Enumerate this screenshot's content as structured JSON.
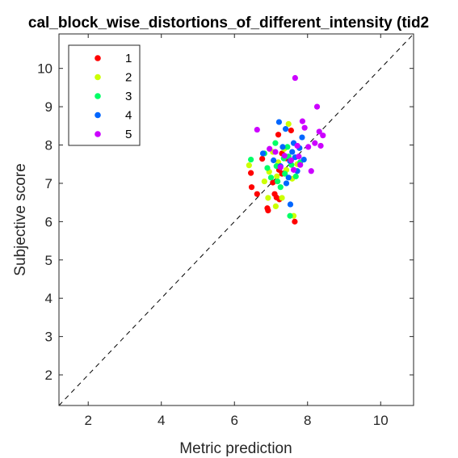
{
  "chart_data": {
    "type": "scatter",
    "title": "cal_block_wise_distortions_of_different_intensity (tid2",
    "xlabel": "Metric prediction",
    "ylabel": "Subjective score",
    "xlim": [
      1.2,
      10.9
    ],
    "ylim": [
      1.2,
      10.9
    ],
    "xticks": [
      2,
      4,
      6,
      8,
      10
    ],
    "yticks": [
      2,
      3,
      4,
      5,
      6,
      7,
      8,
      9,
      10
    ],
    "grid": false,
    "legend_position": "top-left",
    "reference_line": "diagonal dashed y = x",
    "series": [
      {
        "name": "1",
        "color": "#ff0000",
        "points": [
          [
            6.45,
            7.27
          ],
          [
            6.47,
            6.9
          ],
          [
            6.62,
            6.72
          ],
          [
            6.76,
            7.64
          ],
          [
            6.9,
            6.35
          ],
          [
            6.92,
            6.29
          ],
          [
            7.1,
            6.72
          ],
          [
            7.15,
            6.63
          ],
          [
            7.23,
            6.58
          ],
          [
            7.05,
            7.02
          ],
          [
            7.22,
            7.35
          ],
          [
            7.3,
            7.78
          ],
          [
            7.2,
            8.27
          ],
          [
            7.55,
            8.38
          ],
          [
            7.3,
            7.25
          ],
          [
            7.65,
            6.0
          ],
          [
            7.42,
            7.65
          ]
        ]
      },
      {
        "name": "2",
        "color": "#ccff00",
        "points": [
          [
            6.4,
            7.47
          ],
          [
            6.82,
            7.05
          ],
          [
            6.92,
            6.62
          ],
          [
            7.13,
            6.4
          ],
          [
            7.3,
            6.62
          ],
          [
            7.48,
            8.55
          ],
          [
            7.36,
            7.9
          ],
          [
            7.58,
            7.12
          ],
          [
            7.62,
            6.15
          ],
          [
            7.2,
            7.55
          ],
          [
            7.05,
            7.82
          ],
          [
            7.42,
            7.35
          ],
          [
            7.72,
            7.5
          ],
          [
            7.16,
            7.18
          ],
          [
            6.95,
            7.3
          ]
        ]
      },
      {
        "name": "3",
        "color": "#00ff66",
        "points": [
          [
            6.45,
            7.62
          ],
          [
            6.9,
            7.4
          ],
          [
            7.0,
            7.15
          ],
          [
            7.12,
            8.05
          ],
          [
            7.18,
            7.05
          ],
          [
            7.26,
            6.9
          ],
          [
            7.35,
            7.65
          ],
          [
            7.45,
            7.95
          ],
          [
            7.52,
            6.15
          ],
          [
            7.56,
            7.48
          ],
          [
            7.68,
            7.18
          ],
          [
            7.8,
            7.55
          ],
          [
            7.15,
            7.45
          ],
          [
            7.38,
            7.25
          ],
          [
            7.48,
            7.7
          ],
          [
            6.82,
            7.78
          ]
        ]
      },
      {
        "name": "4",
        "color": "#0066ff",
        "points": [
          [
            6.78,
            7.78
          ],
          [
            7.07,
            7.6
          ],
          [
            7.22,
            8.6
          ],
          [
            7.32,
            7.95
          ],
          [
            7.4,
            8.42
          ],
          [
            7.48,
            7.15
          ],
          [
            7.53,
            6.45
          ],
          [
            7.58,
            7.82
          ],
          [
            7.62,
            8.05
          ],
          [
            7.72,
            7.32
          ],
          [
            7.78,
            7.92
          ],
          [
            7.85,
            8.2
          ],
          [
            7.9,
            7.62
          ],
          [
            7.26,
            7.45
          ],
          [
            7.52,
            7.58
          ],
          [
            7.66,
            7.68
          ],
          [
            7.42,
            7.0
          ]
        ]
      },
      {
        "name": "5",
        "color": "#cc00ff",
        "points": [
          [
            6.62,
            8.4
          ],
          [
            6.96,
            7.9
          ],
          [
            7.12,
            7.82
          ],
          [
            7.26,
            7.42
          ],
          [
            7.37,
            7.72
          ],
          [
            7.55,
            7.6
          ],
          [
            7.66,
            9.75
          ],
          [
            7.72,
            7.98
          ],
          [
            7.8,
            7.48
          ],
          [
            7.86,
            8.62
          ],
          [
            7.92,
            8.45
          ],
          [
            8.02,
            7.95
          ],
          [
            8.1,
            7.32
          ],
          [
            8.2,
            8.05
          ],
          [
            8.26,
            9.0
          ],
          [
            8.32,
            8.35
          ],
          [
            8.36,
            7.98
          ],
          [
            8.42,
            8.25
          ],
          [
            7.76,
            7.7
          ],
          [
            7.62,
            7.35
          ]
        ]
      }
    ]
  }
}
